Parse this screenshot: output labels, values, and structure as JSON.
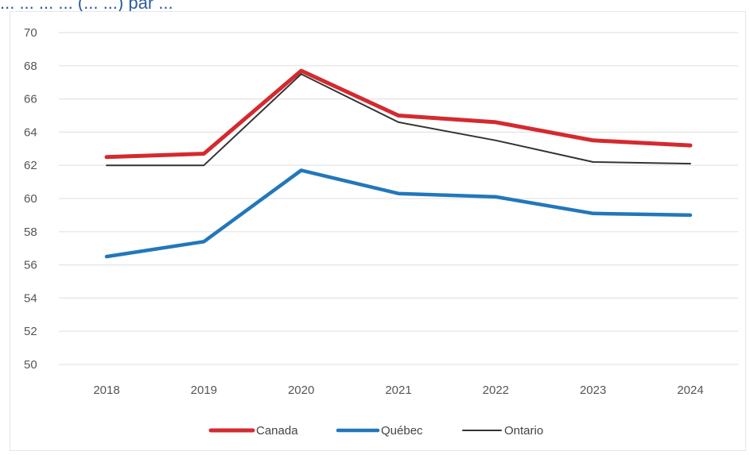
{
  "chart_data": {
    "type": "line",
    "title": "... ... ... ... (... ...) par ...",
    "x": [
      "2018",
      "2019",
      "2020",
      "2021",
      "2022",
      "2023",
      "2024"
    ],
    "series": [
      {
        "name": "Canada",
        "values": [
          62.5,
          62.7,
          67.7,
          65.0,
          64.6,
          63.5,
          63.2
        ],
        "color": "#d42a2f"
      },
      {
        "name": "Québec",
        "values": [
          56.5,
          57.4,
          61.7,
          60.3,
          60.1,
          59.1,
          59.0
        ],
        "color": "#2277bb"
      },
      {
        "name": "Ontario",
        "values": [
          62.0,
          62.0,
          67.5,
          64.6,
          63.5,
          62.2,
          62.1
        ],
        "color": "#333333"
      }
    ],
    "y_ticks": [
      "50",
      "52",
      "54",
      "56",
      "58",
      "60",
      "62",
      "64",
      "66",
      "68",
      "70"
    ],
    "ylim": [
      50,
      70
    ],
    "grid": true,
    "legend_position": "bottom"
  }
}
